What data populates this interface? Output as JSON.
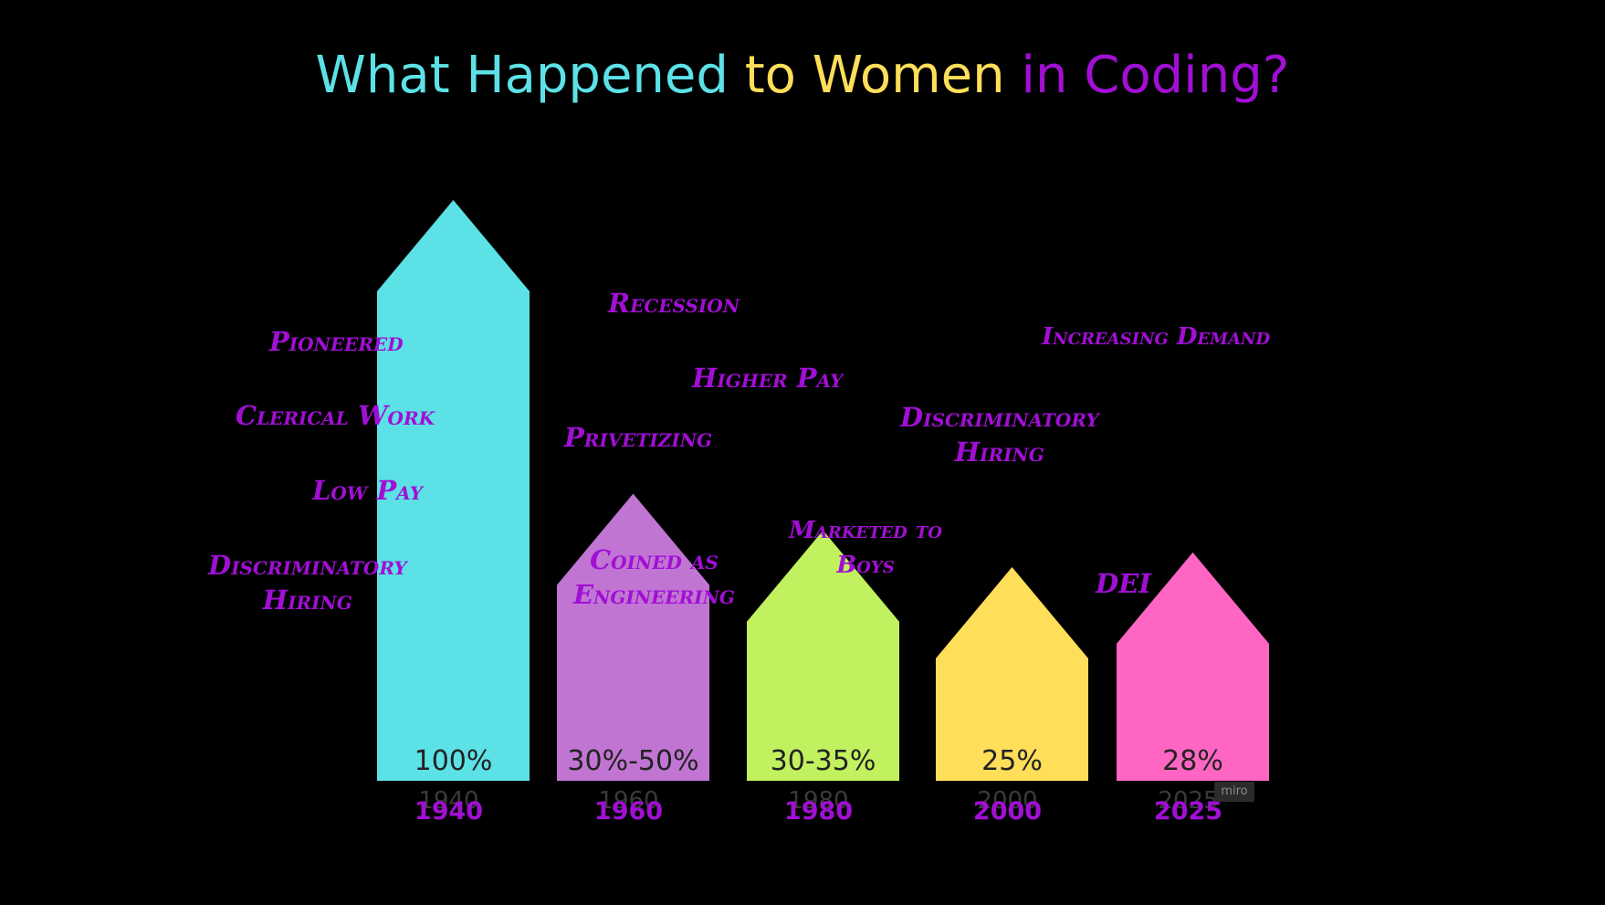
{
  "title": {
    "part1": "What Happened",
    "part2": " to Women",
    "part3": " in Coding?"
  },
  "colors": {
    "cyan": "#5ce1e6",
    "purple": "#c175d3",
    "lime": "#c1f15e",
    "yellow": "#ffde59",
    "pink": "#ff66c4",
    "annotation": "#a10fd4"
  },
  "chart_data": {
    "type": "bar",
    "categories": [
      "1940",
      "1960",
      "1980",
      "2000",
      "2025"
    ],
    "values": [
      100,
      40,
      32.5,
      25,
      28
    ],
    "value_labels": [
      "100%",
      "30%-50%",
      "30-35%",
      "25%",
      "28%"
    ],
    "ylim": [
      0,
      100
    ],
    "grid": false,
    "legend": "none",
    "bar_colors": [
      "#5ce1e6",
      "#c175d3",
      "#c1f15e",
      "#ffde59",
      "#ff66c4"
    ]
  },
  "annotations": {
    "pioneered": "Pioneered",
    "clerical_work": "Clerical Work",
    "low_pay": "Low Pay",
    "discriminatory_hiring_1940": "Discriminatory\nHiring",
    "recession": "Recession",
    "higher_pay": "Higher Pay",
    "privetizing": "Privetizing",
    "coined_as_engineering": "Coined as\nEngineering",
    "marketed_to_boys": "Marketed to\nBoys",
    "discriminatory_hiring_2000": "Discriminatory\nHiring",
    "increasing_demand": "Increasing Demand",
    "dei": "DEI"
  },
  "watermark": "miro"
}
